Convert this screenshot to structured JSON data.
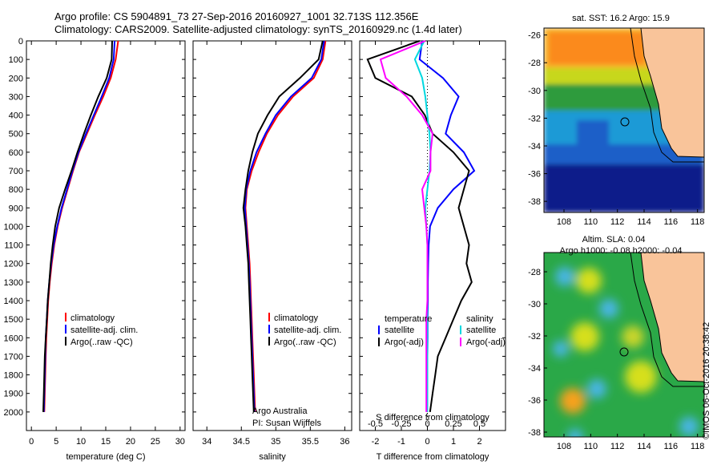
{
  "header": {
    "line1": "Argo profile: CS 5904891_73 27-Sep-2016 20160927_1001 32.713S 112.356E",
    "line2": "Climatology: CARS2009. Satellite-adjusted climatology: synTS_20160929.nc (1.4d later)"
  },
  "colors": {
    "climatology": "#ff0000",
    "satellite": "#0000ff",
    "argo": "#000000",
    "salinity_satellite": "#00d8e0",
    "salinity_argo": "#ff00ff",
    "land": "#f9c49a"
  },
  "chart_data": [
    {
      "type": "line",
      "panel": "temperature",
      "xlabel": "temperature (deg C)",
      "xlim": [
        -1,
        31
      ],
      "ylim": [
        2100,
        0
      ],
      "xticks": [
        "0",
        "5",
        "10",
        "15",
        "20",
        "25",
        "30"
      ],
      "yticks": [
        "0",
        "100",
        "200",
        "300",
        "400",
        "500",
        "600",
        "700",
        "800",
        "900",
        "1000",
        "1100",
        "1200",
        "1300",
        "1400",
        "1500",
        "1600",
        "1700",
        "1800",
        "1900",
        "2000"
      ],
      "legend": [
        "climatology",
        "satellite-adj. clim.",
        "Argo(..raw -QC)"
      ],
      "series": [
        {
          "name": "climatology",
          "x": [
            17.5,
            17.0,
            16.0,
            14.5,
            12.8,
            11.2,
            9.6,
            8.4,
            7.3,
            6.2,
            5.3,
            4.6,
            4.1,
            3.7,
            3.4,
            3.2,
            3.0,
            2.9,
            2.8,
            2.7,
            2.6
          ],
          "y": [
            0,
            100,
            200,
            300,
            400,
            500,
            600,
            700,
            800,
            900,
            1000,
            1100,
            1200,
            1300,
            1400,
            1500,
            1600,
            1700,
            1800,
            1900,
            2000
          ]
        },
        {
          "name": "satellite-adj. clim.",
          "x": [
            16.8,
            16.6,
            15.7,
            14.2,
            12.6,
            11.0,
            9.5,
            8.3,
            7.2,
            6.1,
            5.2,
            4.5,
            4.0,
            3.6,
            3.3,
            3.1,
            2.9,
            2.8,
            2.7,
            2.6,
            2.5
          ],
          "y": [
            0,
            100,
            200,
            300,
            400,
            500,
            600,
            700,
            800,
            900,
            1000,
            1100,
            1200,
            1300,
            1400,
            1500,
            1600,
            1700,
            1800,
            1900,
            2000
          ]
        },
        {
          "name": "Argo(..raw -QC)",
          "x": [
            16.3,
            16.2,
            15.2,
            13.5,
            12.0,
            10.6,
            9.3,
            8.1,
            6.8,
            5.6,
            4.8,
            4.3,
            3.9,
            3.6,
            3.3,
            3.1,
            2.9,
            2.7,
            2.6,
            2.5,
            2.4
          ],
          "y": [
            0,
            100,
            200,
            300,
            400,
            500,
            600,
            700,
            800,
            900,
            1000,
            1100,
            1200,
            1300,
            1400,
            1500,
            1600,
            1700,
            1800,
            1900,
            2000
          ]
        }
      ]
    },
    {
      "type": "line",
      "panel": "salinity",
      "xlabel": "salinity",
      "xlim": [
        33.8,
        36.1
      ],
      "ylim": [
        2100,
        0
      ],
      "xticks": [
        "34",
        "34.5",
        "35",
        "35.5",
        "36"
      ],
      "legend": [
        "climatology",
        "satellite-adj. clim.",
        "Argo(..raw -QC)"
      ],
      "annotation": [
        "Argo Australia",
        "PI: Susan Wijffels"
      ],
      "series": [
        {
          "name": "climatology",
          "x": [
            35.72,
            35.68,
            35.55,
            35.25,
            35.03,
            34.87,
            34.75,
            34.65,
            34.58,
            34.56,
            34.58,
            34.6,
            34.62,
            34.63,
            34.64,
            34.65,
            34.66,
            34.67,
            34.68,
            34.69,
            34.7
          ],
          "y": [
            0,
            100,
            200,
            300,
            400,
            500,
            600,
            700,
            800,
            900,
            1000,
            1100,
            1200,
            1300,
            1400,
            1500,
            1600,
            1700,
            1800,
            1900,
            2000
          ]
        },
        {
          "name": "satellite-adj. clim.",
          "x": [
            35.7,
            35.66,
            35.52,
            35.22,
            35.0,
            34.85,
            34.72,
            34.63,
            34.57,
            34.55,
            34.57,
            34.59,
            34.61,
            34.62,
            34.63,
            34.64,
            34.65,
            34.66,
            34.67,
            34.68,
            34.69
          ],
          "y": [
            0,
            100,
            200,
            300,
            400,
            500,
            600,
            700,
            800,
            900,
            1000,
            1100,
            1200,
            1300,
            1400,
            1500,
            1600,
            1700,
            1800,
            1900,
            2000
          ]
        },
        {
          "name": "Argo(..raw -QC)",
          "x": [
            35.68,
            35.62,
            35.35,
            35.05,
            34.88,
            34.74,
            34.66,
            34.6,
            34.56,
            34.53,
            34.56,
            34.58,
            34.6,
            34.61,
            34.62,
            34.63,
            34.64,
            34.65,
            34.66,
            34.67,
            34.68
          ],
          "y": [
            0,
            100,
            200,
            300,
            400,
            500,
            600,
            700,
            800,
            900,
            1000,
            1100,
            1200,
            1300,
            1400,
            1500,
            1600,
            1700,
            1800,
            1900,
            2000
          ]
        }
      ]
    },
    {
      "type": "line",
      "panel": "differences",
      "xlabel": "T difference from climatology",
      "xlabel_top": "S difference from climatology",
      "xlim": [
        -2.6,
        3.0
      ],
      "ylim": [
        2100,
        0
      ],
      "xticks": [
        "-2",
        "-1",
        "0",
        "1",
        "2"
      ],
      "xticks_top": [
        "-0.5",
        "-0.25",
        "0",
        "0.25",
        "0.5"
      ],
      "legend_temperature": [
        "temperature",
        "satellite",
        "Argo(-adj)"
      ],
      "legend_salinity": [
        "salinity",
        "satellite",
        "Argo(-adj)"
      ],
      "series": [
        {
          "name": "temperature satellite",
          "x": [
            -0.2,
            -0.3,
            0.6,
            1.2,
            0.9,
            0.7,
            1.4,
            1.8,
            1.0,
            0.4,
            0.1,
            0.05,
            0.03,
            0.02,
            0.02,
            0.01,
            0.01,
            0.0,
            0.0,
            0.0,
            0.0
          ],
          "y": [
            0,
            100,
            200,
            300,
            400,
            500,
            600,
            700,
            800,
            900,
            1000,
            1100,
            1200,
            1300,
            1400,
            1500,
            1600,
            1700,
            1800,
            1900,
            2000
          ]
        },
        {
          "name": "temperature Argo(-adj)",
          "x": [
            -0.3,
            -2.3,
            -2.0,
            -0.6,
            -0.1,
            0.2,
            1.0,
            1.6,
            1.4,
            1.2,
            1.4,
            1.6,
            1.5,
            1.7,
            1.3,
            1.0,
            0.7,
            0.4,
            0.3,
            0.2,
            0.1
          ],
          "y": [
            0,
            100,
            200,
            300,
            400,
            500,
            600,
            700,
            800,
            900,
            1000,
            1100,
            1200,
            1300,
            1400,
            1500,
            1600,
            1700,
            1800,
            1900,
            2000
          ]
        },
        {
          "name": "salinity satellite",
          "x": [
            -0.03,
            -0.12,
            -0.05,
            -0.02,
            0.0,
            0.02,
            0.03,
            0.02,
            0.0,
            -0.02,
            -0.01,
            0.0,
            0.0,
            0.0,
            0.0,
            0.0,
            0.0,
            0.0,
            0.0,
            0.0,
            0.0
          ],
          "y": [
            0,
            100,
            200,
            300,
            400,
            500,
            600,
            700,
            800,
            900,
            1000,
            1100,
            1200,
            1300,
            1400,
            1500,
            1600,
            1700,
            1800,
            1900,
            2000
          ]
        },
        {
          "name": "salinity Argo(-adj)",
          "x": [
            -0.02,
            -0.45,
            -0.4,
            -0.2,
            -0.05,
            0.05,
            0.03,
            0.03,
            -0.05,
            -0.03,
            -0.01,
            0.0,
            0.0,
            0.0,
            0.0,
            -0.01,
            -0.01,
            -0.01,
            -0.01,
            -0.01,
            -0.01
          ],
          "y": [
            0,
            100,
            200,
            300,
            400,
            500,
            600,
            700,
            800,
            900,
            1000,
            1100,
            1200,
            1300,
            1400,
            1500,
            1600,
            1700,
            1800,
            1900,
            2000
          ]
        }
      ]
    },
    {
      "type": "heatmap",
      "panel": "sst-map",
      "title": "sat. SST: 16.2  Argo: 15.9",
      "xticks": [
        "108",
        "110",
        "112",
        "114",
        "116",
        "118"
      ],
      "yticks": [
        "-26",
        "-28",
        "-30",
        "-32",
        "-34",
        "-36",
        "-38"
      ],
      "marker": {
        "lon": 112.356,
        "lat": -32.713
      }
    },
    {
      "type": "heatmap",
      "panel": "sla-map",
      "title": "Altim. SLA: 0.04",
      "subtitle": "Argo h1000: -0.08 h2000: -0.04",
      "xticks": [
        "108",
        "110",
        "112",
        "114",
        "116",
        "118"
      ],
      "yticks": [
        "-28",
        "-30",
        "-32",
        "-34",
        "-36",
        "-38"
      ],
      "marker": {
        "lon": 112.356,
        "lat": -32.713
      }
    }
  ],
  "footer_stamp": "©IMOS 06-Oct-2016 20:38:42"
}
